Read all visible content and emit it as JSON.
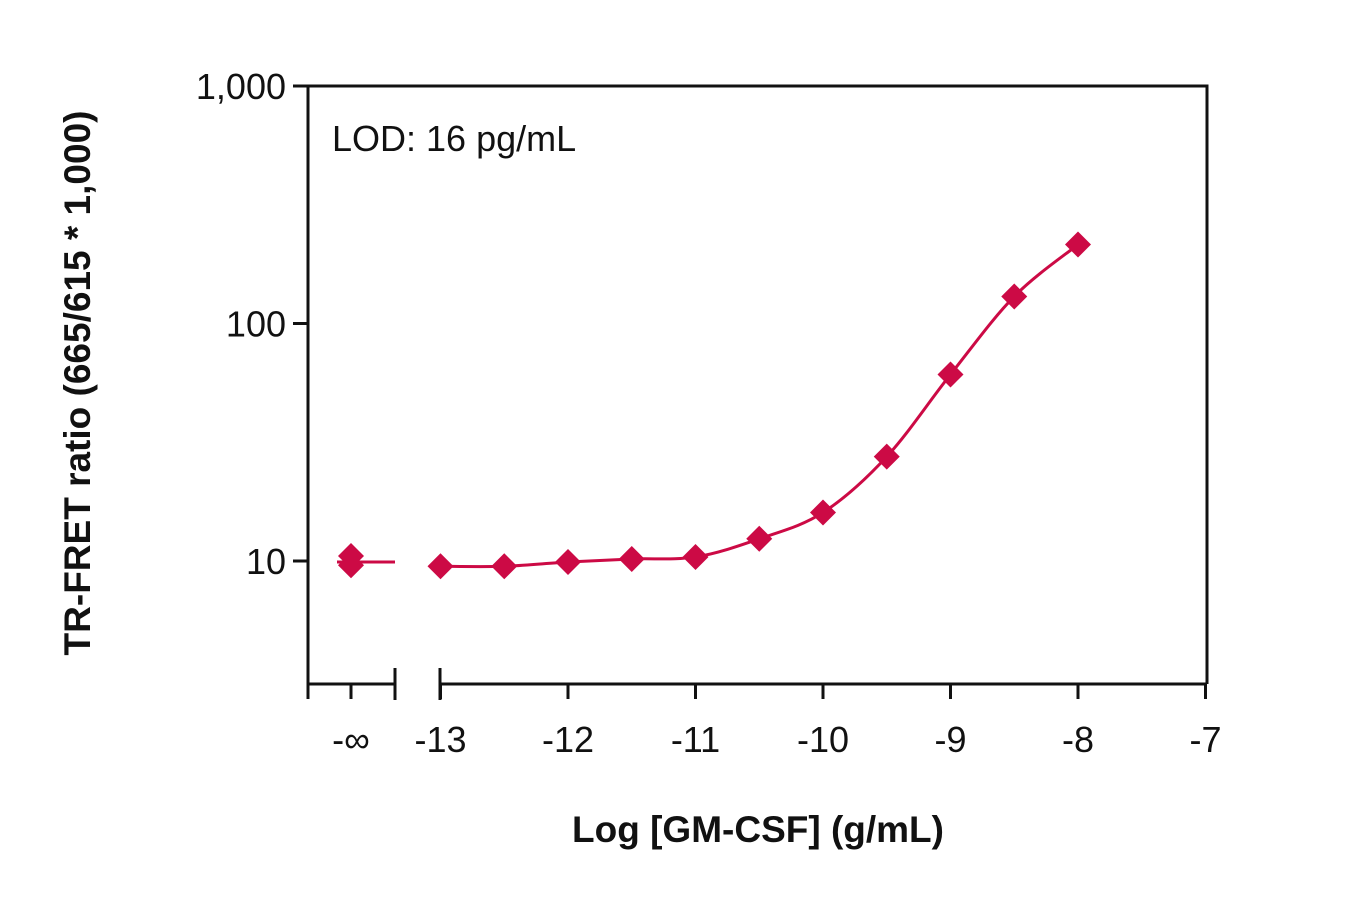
{
  "chart_data": {
    "type": "scatter",
    "xlabel": "Log [GM-CSF] (g/mL)",
    "ylabel": "TR-FRET ratio (665/615 * 1,000)",
    "annotation": "LOD: 16 pg/mL",
    "y_scale": "log",
    "ylim": [
      3,
      1000
    ],
    "xlim": [
      -13.5,
      -7
    ],
    "grid": false,
    "x_ticks": [
      "-∞",
      "-13",
      "-12",
      "-11",
      "-10",
      "-9",
      "-8",
      "-7"
    ],
    "x_tick_values": [
      null,
      -13,
      -12,
      -11,
      -10,
      -9,
      -8,
      -7
    ],
    "y_ticks": [
      "10",
      "100",
      "1,000"
    ],
    "y_tick_values": [
      10,
      100,
      1000
    ],
    "marker_color": "#cc0a45",
    "line_color": "#cc0a45",
    "blank_points": [
      10.5,
      9.6
    ],
    "blank_line": 9.9,
    "series": [
      {
        "x": [
          -13,
          -12.5,
          -12,
          -11.5,
          -11,
          -10.5,
          -10,
          -9.5,
          -9,
          -8.5,
          -8
        ],
        "y": [
          9.5,
          9.5,
          9.9,
          10.2,
          10.4,
          12.4,
          16,
          27.5,
          61,
          130,
          215
        ]
      }
    ]
  }
}
